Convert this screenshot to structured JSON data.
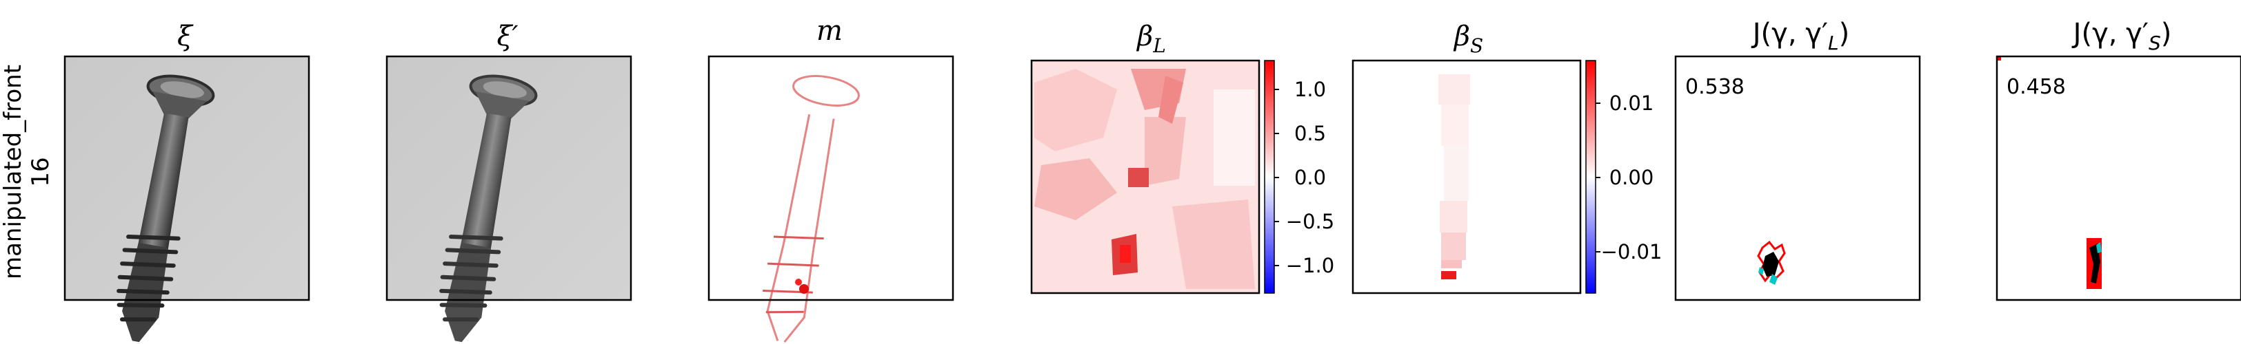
{
  "row_label_line1": "manipulated_front",
  "row_label_line2": "16",
  "panels": {
    "xi": {
      "title": "ξ"
    },
    "xi_prime": {
      "title": "ξ′"
    },
    "m": {
      "title": "m"
    },
    "beta_l": {
      "title_main": "β",
      "title_sub": "L",
      "colorbar_ticks": [
        "1.0",
        "0.5",
        "0.0",
        "−0.5",
        "−1.0"
      ]
    },
    "beta_s": {
      "title_main": "β",
      "title_sub": "S",
      "colorbar_ticks": [
        "0.01",
        "0.00",
        "−0.01"
      ]
    },
    "j_l": {
      "title_prefix": "J(γ, γ′",
      "title_sub": "L",
      "title_suffix": ")",
      "score": "0.538"
    },
    "j_s": {
      "title_prefix": "J(γ, γ′",
      "title_sub": "S",
      "title_suffix": ")",
      "score": "0.458"
    }
  },
  "colors": {
    "positive": "#ff0000",
    "negative": "#0000ff",
    "neutral": "#ffffff",
    "overlay_cyan": "#00c8c8",
    "overlay_black": "#000000"
  }
}
